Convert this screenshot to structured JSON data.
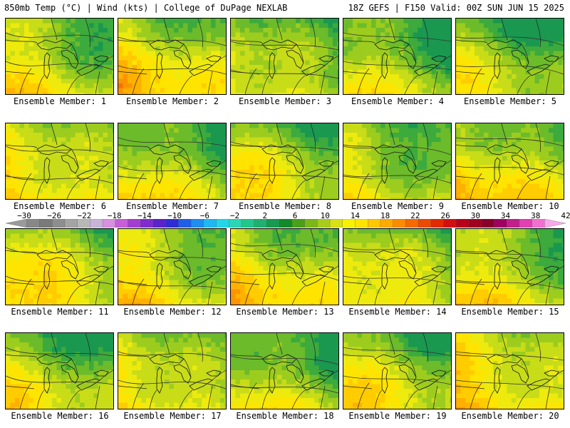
{
  "header": {
    "left": "850mb Temp (°C) | Wind (kts) | College of DuPage NEXLAB",
    "right": "18Z GEFS | F150 Valid: 00Z SUN JUN 15 2025"
  },
  "colorbar": {
    "ticks": [
      "−30",
      "−26",
      "−22",
      "−18",
      "−14",
      "−10",
      "−6",
      "−2",
      "2",
      "6",
      "10",
      "14",
      "18",
      "22",
      "26",
      "30",
      "34",
      "38",
      "42"
    ],
    "colors": [
      "#9a9a9a",
      "#888888",
      "#7a7a7a",
      "#8e8e8e",
      "#a4a4a4",
      "#b8b8b8",
      "#c8b4d8",
      "#d890e0",
      "#c65fd8",
      "#a33fd0",
      "#7f2bd0",
      "#5a22c8",
      "#2f2cd4",
      "#1f5ee6",
      "#1e8ef0",
      "#20b8f0",
      "#22d6e8",
      "#2ad6b4",
      "#22c88a",
      "#1fb070",
      "#169a4e",
      "#128a2a",
      "#4aa018",
      "#7ab818",
      "#a8cc1c",
      "#d8e018",
      "#f6f200",
      "#ffe400",
      "#ffc800",
      "#ffaa00",
      "#fb8c00",
      "#f46a00",
      "#ec4a00",
      "#e02a00",
      "#d01010",
      "#b80018",
      "#a00020",
      "#88002a",
      "#a00060",
      "#c0208a",
      "#e040b0",
      "#f070d0",
      "#f8a8e8"
    ]
  },
  "panels": [
    {
      "label": "Ensemble Member: 1",
      "warmth": 0.55
    },
    {
      "label": "Ensemble Member: 2",
      "warmth": 0.75
    },
    {
      "label": "Ensemble Member: 3",
      "warmth": 0.45
    },
    {
      "label": "Ensemble Member: 4",
      "warmth": 0.4
    },
    {
      "label": "Ensemble Member: 5",
      "warmth": 0.35
    },
    {
      "label": "Ensemble Member: 6",
      "warmth": 0.7
    },
    {
      "label": "Ensemble Member: 7",
      "warmth": 0.5
    },
    {
      "label": "Ensemble Member: 8",
      "warmth": 0.55
    },
    {
      "label": "Ensemble Member: 9",
      "warmth": 0.45
    },
    {
      "label": "Ensemble Member: 10",
      "warmth": 0.7
    },
    {
      "label": "Ensemble Member: 11",
      "warmth": 0.7
    },
    {
      "label": "Ensemble Member: 12",
      "warmth": 0.65
    },
    {
      "label": "Ensemble Member: 13",
      "warmth": 0.7
    },
    {
      "label": "Ensemble Member: 14",
      "warmth": 0.6
    },
    {
      "label": "Ensemble Member: 15",
      "warmth": 0.6
    },
    {
      "label": "Ensemble Member: 16",
      "warmth": 0.45
    },
    {
      "label": "Ensemble Member: 17",
      "warmth": 0.6
    },
    {
      "label": "Ensemble Member: 18",
      "warmth": 0.4
    },
    {
      "label": "Ensemble Member: 19",
      "warmth": 0.55
    },
    {
      "label": "Ensemble Member: 20",
      "warmth": 0.8
    }
  ]
}
